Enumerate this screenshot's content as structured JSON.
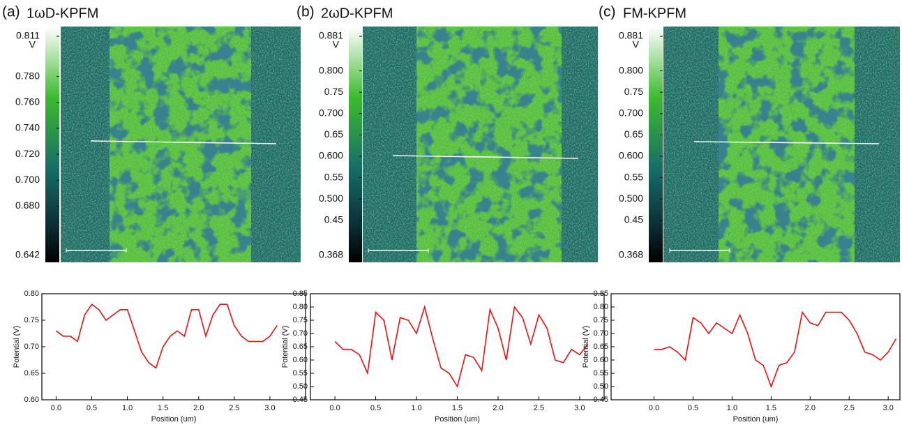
{
  "chart_data": [
    {
      "type": "image",
      "label": "(a)",
      "title": "1ωD-KPFM",
      "colorbar_unit": "V",
      "clim": [
        0.642,
        0.811
      ],
      "cticks": [
        {
          "value": 0.811,
          "label": "0.811"
        },
        {
          "value": 0.78,
          "label": "0.780"
        },
        {
          "value": 0.76,
          "label": "0.760"
        },
        {
          "value": 0.74,
          "label": "0.740"
        },
        {
          "value": 0.72,
          "label": "0.720"
        },
        {
          "value": 0.7,
          "label": "0.700"
        },
        {
          "value": 0.68,
          "label": "0.680"
        },
        {
          "value": 0.642,
          "label": "0.642"
        }
      ]
    },
    {
      "type": "image",
      "label": "(b)",
      "title": "2ωD-KPFM",
      "colorbar_unit": "V",
      "clim": [
        0.368,
        0.881
      ],
      "cticks": [
        0.881,
        {
          "value": 0.8,
          "label": "0.800"
        },
        0.75,
        {
          "value": 0.7,
          "label": "0.700"
        },
        0.65,
        {
          "value": 0.6,
          "label": "0.600"
        },
        0.55,
        {
          "value": 0.5,
          "label": "0.500"
        },
        0.45,
        0.368
      ]
    },
    {
      "type": "image",
      "label": "(c)",
      "title": "FM-KPFM",
      "colorbar_unit": "V",
      "clim": [
        0.368,
        0.881
      ],
      "cticks": [
        0.881,
        {
          "value": 0.8,
          "label": "0.800"
        },
        0.75,
        {
          "value": 0.7,
          "label": "0.700"
        },
        0.65,
        {
          "value": 0.6,
          "label": "0.600"
        },
        0.55,
        {
          "value": 0.5,
          "label": "0.500"
        },
        0.45,
        0.368
      ]
    },
    {
      "type": "line",
      "xlabel": "Position (um)",
      "ylabel": "Potential (V)",
      "color": "#ee1111",
      "x": [
        0.0,
        0.1,
        0.2,
        0.3,
        0.4,
        0.5,
        0.6,
        0.7,
        0.8,
        0.9,
        1.0,
        1.1,
        1.2,
        1.3,
        1.4,
        1.5,
        1.6,
        1.7,
        1.8,
        1.9,
        2.0,
        2.1,
        2.2,
        2.3,
        2.4,
        2.5,
        2.6,
        2.7,
        2.8,
        2.9,
        3.0,
        3.1
      ],
      "values": [
        0.73,
        0.72,
        0.72,
        0.71,
        0.76,
        0.78,
        0.77,
        0.75,
        0.76,
        0.77,
        0.77,
        0.73,
        0.69,
        0.67,
        0.66,
        0.7,
        0.72,
        0.73,
        0.72,
        0.77,
        0.77,
        0.72,
        0.76,
        0.78,
        0.78,
        0.74,
        0.72,
        0.71,
        0.71,
        0.71,
        0.72,
        0.74
      ],
      "xlim": [
        -0.2,
        3.5
      ],
      "ylim": [
        0.6,
        0.8
      ],
      "xticks": [
        {
          "value": 0,
          "label": "0.0"
        },
        0.5,
        {
          "value": 1,
          "label": "1.0"
        },
        1.5,
        {
          "value": 2,
          "label": "2.0"
        },
        2.5,
        {
          "value": 3,
          "label": "3.0"
        }
      ],
      "yticks": [
        {
          "value": 0.6,
          "label": "0.60"
        },
        0.65,
        {
          "value": 0.7,
          "label": "0.70"
        },
        0.75,
        {
          "value": 0.8,
          "label": "0.80"
        }
      ]
    },
    {
      "type": "line",
      "xlabel": "Position (um)",
      "ylabel": "Potential (V)",
      "color": "#ee1111",
      "x": [
        0.0,
        0.1,
        0.2,
        0.3,
        0.4,
        0.5,
        0.6,
        0.7,
        0.8,
        0.9,
        1.0,
        1.1,
        1.2,
        1.3,
        1.4,
        1.5,
        1.6,
        1.7,
        1.8,
        1.9,
        2.0,
        2.1,
        2.2,
        2.3,
        2.4,
        2.5,
        2.6,
        2.7,
        2.8,
        2.9,
        3.0,
        3.1
      ],
      "values": [
        0.67,
        0.64,
        0.64,
        0.62,
        0.55,
        0.78,
        0.75,
        0.6,
        0.76,
        0.75,
        0.7,
        0.8,
        0.68,
        0.57,
        0.55,
        0.5,
        0.62,
        0.61,
        0.56,
        0.79,
        0.72,
        0.6,
        0.8,
        0.76,
        0.66,
        0.77,
        0.72,
        0.6,
        0.59,
        0.64,
        0.62,
        0.66
      ],
      "xlim": [
        -0.3,
        3.3
      ],
      "ylim": [
        0.45,
        0.85
      ],
      "xticks": [
        {
          "value": 0,
          "label": "0.0"
        },
        0.5,
        {
          "value": 1,
          "label": "1.0"
        },
        1.5,
        {
          "value": 2,
          "label": "2.0"
        },
        2.5,
        {
          "value": 3,
          "label": "3.0"
        }
      ],
      "yticks": [
        0.45,
        {
          "value": 0.5,
          "label": "0.50"
        },
        0.55,
        {
          "value": 0.6,
          "label": "0.60"
        },
        0.65,
        {
          "value": 0.7,
          "label": "0.70"
        },
        0.75,
        {
          "value": 0.8,
          "label": "0.80"
        },
        0.85
      ]
    },
    {
      "type": "line",
      "xlabel": "Position (um)",
      "ylabel": "Potential (V)",
      "color": "#ee1111",
      "x": [
        0.0,
        0.1,
        0.2,
        0.3,
        0.4,
        0.5,
        0.6,
        0.7,
        0.8,
        0.9,
        1.0,
        1.1,
        1.2,
        1.3,
        1.4,
        1.5,
        1.6,
        1.7,
        1.8,
        1.9,
        2.0,
        2.1,
        2.2,
        2.3,
        2.4,
        2.5,
        2.6,
        2.7,
        2.8,
        2.9,
        3.0,
        3.1
      ],
      "values": [
        0.64,
        0.64,
        0.65,
        0.63,
        0.6,
        0.76,
        0.74,
        0.7,
        0.74,
        0.72,
        0.7,
        0.77,
        0.7,
        0.6,
        0.58,
        0.5,
        0.58,
        0.59,
        0.63,
        0.78,
        0.74,
        0.73,
        0.78,
        0.78,
        0.78,
        0.75,
        0.7,
        0.63,
        0.62,
        0.6,
        0.63,
        0.68
      ],
      "xlim": [
        -0.55,
        3.15
      ],
      "ylim": [
        0.45,
        0.85
      ],
      "xticks": [
        {
          "value": 0,
          "label": "0.0"
        },
        0.5,
        {
          "value": 1,
          "label": "1.0"
        },
        1.5,
        {
          "value": 2,
          "label": "2.0"
        },
        2.5,
        {
          "value": 3,
          "label": "3.0"
        }
      ],
      "yticks": [
        0.45,
        {
          "value": 0.5,
          "label": "0.50"
        },
        0.55,
        {
          "value": 0.6,
          "label": "0.60"
        },
        0.65,
        {
          "value": 0.7,
          "label": "0.70"
        },
        0.75,
        {
          "value": 0.8,
          "label": "0.80"
        },
        0.85
      ]
    }
  ]
}
